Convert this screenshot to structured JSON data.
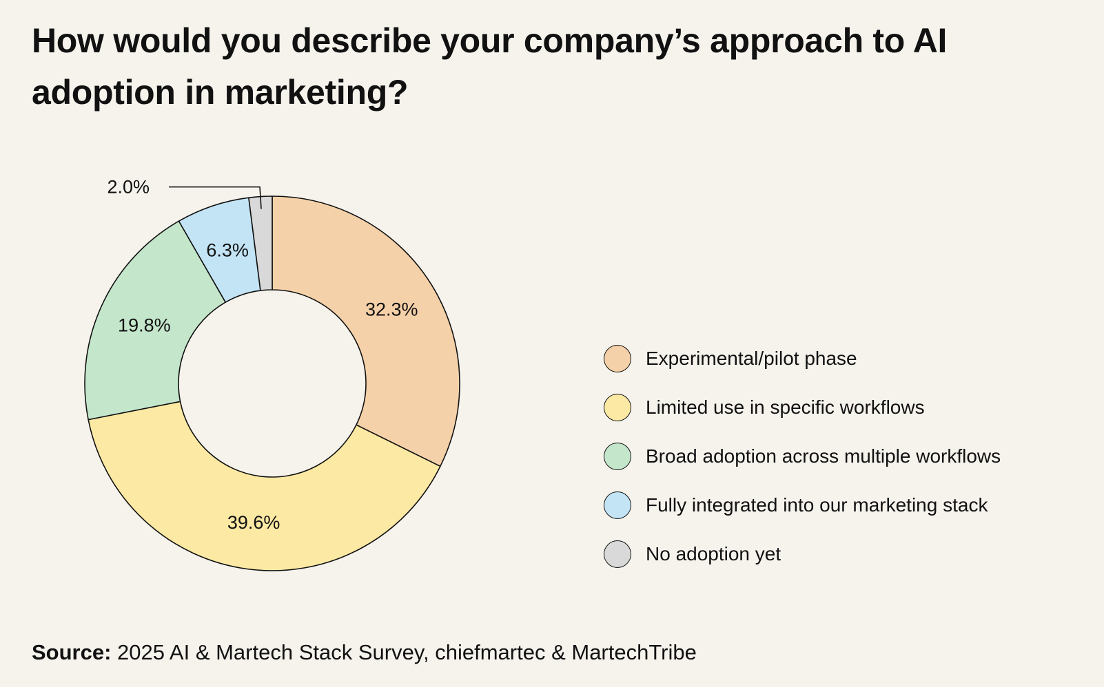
{
  "title": "How would you describe your company’s approach to AI adoption in marketing?",
  "source": {
    "prefix": "Source:",
    "text": "2025 AI & Martech Stack Survey, chiefmartec & MartechTribe"
  },
  "chart_data": {
    "type": "pie",
    "variant": "donut",
    "title": "How would you describe your company’s approach to AI adoption in marketing?",
    "unit": "%",
    "legend_position": "right",
    "slices": [
      {
        "label": "Experimental/pilot phase",
        "value": 32.3,
        "display": "32.3%",
        "color": "#f5d1a9"
      },
      {
        "label": "Limited use in specific workflows",
        "value": 39.6,
        "display": "39.6%",
        "color": "#fbe9a4"
      },
      {
        "label": "Broad adoption across multiple workflows",
        "value": 19.8,
        "display": "19.8%",
        "color": "#c4e6cb"
      },
      {
        "label": "Fully integrated into our marketing stack",
        "value": 6.3,
        "display": "6.3%",
        "color": "#c3e4f5"
      },
      {
        "label": "No adoption yet",
        "value": 2.0,
        "display": "2.0%",
        "color": "#d9d9d9"
      }
    ]
  }
}
